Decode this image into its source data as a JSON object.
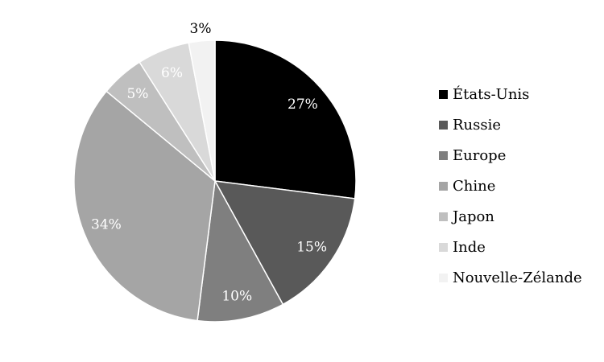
{
  "chart_data": {
    "type": "pie",
    "categories": [
      "États-Unis",
      "Russie",
      "Europe",
      "Chine",
      "Japon",
      "Inde",
      "Nouvelle-Zélande"
    ],
    "values": [
      27,
      15,
      10,
      34,
      5,
      6,
      3
    ],
    "data_labels": [
      "27%",
      "15%",
      "10%",
      "34%",
      "5%",
      "6%",
      "3%"
    ],
    "colors": [
      "#000000",
      "#595959",
      "#7f7f7f",
      "#a5a5a5",
      "#bfbfbf",
      "#d9d9d9",
      "#f2f2f2"
    ],
    "label_colors": [
      "#ffffff",
      "#ffffff",
      "#ffffff",
      "#ffffff",
      "#ffffff",
      "#ffffff",
      "#000000"
    ],
    "legend_position": "right",
    "start_angle": "top, clockwise"
  }
}
